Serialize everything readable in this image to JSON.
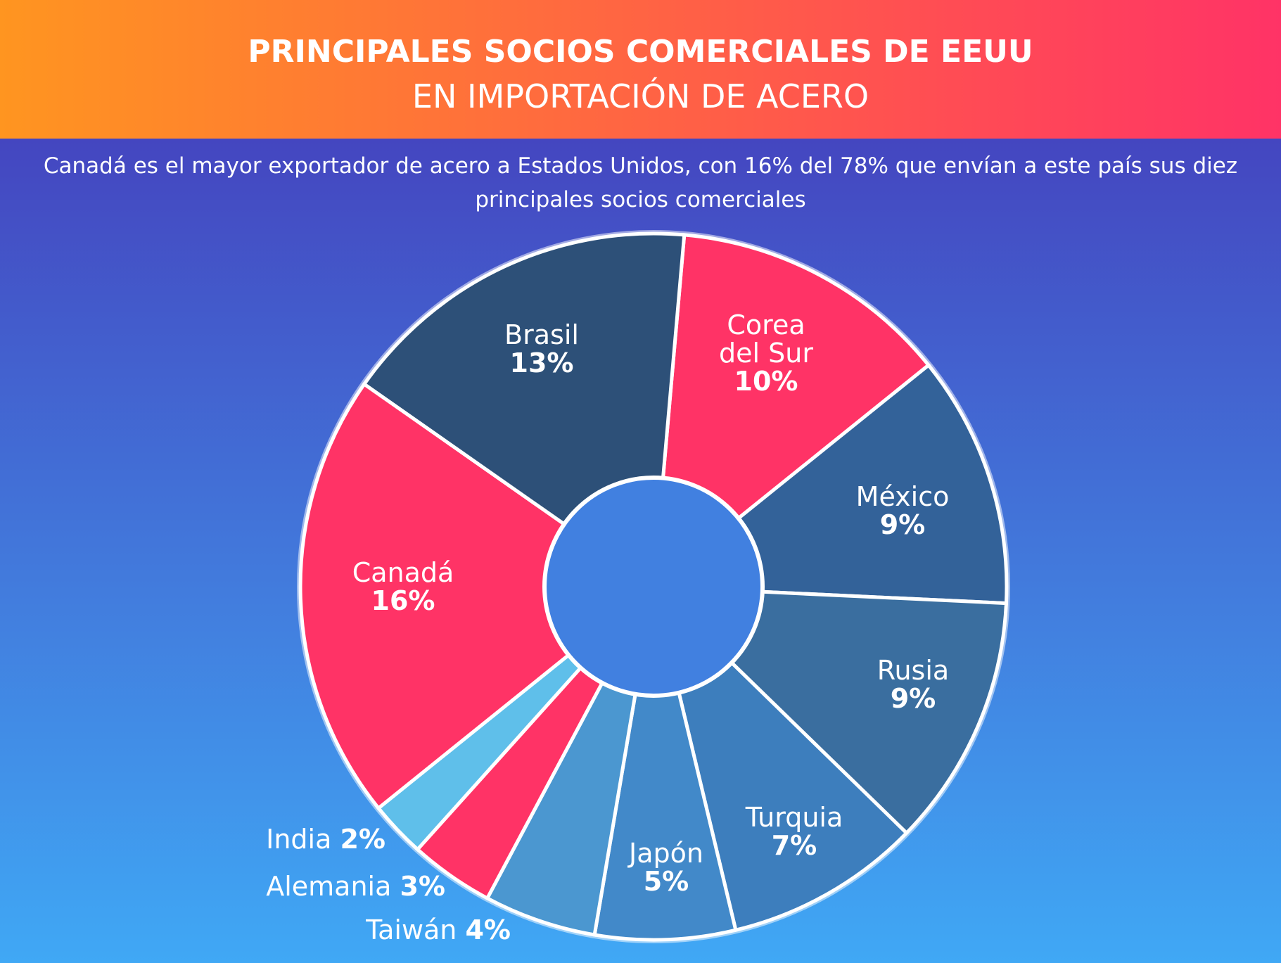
{
  "chart_data": {
    "type": "donut",
    "title": "PRINCIPALES SOCIOS COMERCIALES DE EEUU",
    "subtitle": "EN IMPORTACIÓN DE ACERO",
    "description": "Canadá es el mayor exportador de acero a Estados Unidos, con 16% del 78% que envían a este país sus diez principales socios comerciales",
    "categories": [
      "Corea del Sur",
      "México",
      "Rusia",
      "Turquia",
      "Japón",
      "Taiwán",
      "Alemania",
      "India",
      "Canadá",
      "Brasil"
    ],
    "values": [
      10,
      9,
      9,
      7,
      5,
      4,
      3,
      2,
      16,
      13
    ],
    "value_labels": [
      "10%",
      "9%",
      "9%",
      "7%",
      "5%",
      "4%",
      "3%",
      "2%",
      "16%",
      "13%"
    ],
    "colors": [
      "#ff3366",
      "#336299",
      "#3a6e9f",
      "#3d7ebd",
      "#4289c9",
      "#4b97d0",
      "#ff3366",
      "#5fbfea",
      "#ff3366",
      "#2d5078"
    ]
  }
}
